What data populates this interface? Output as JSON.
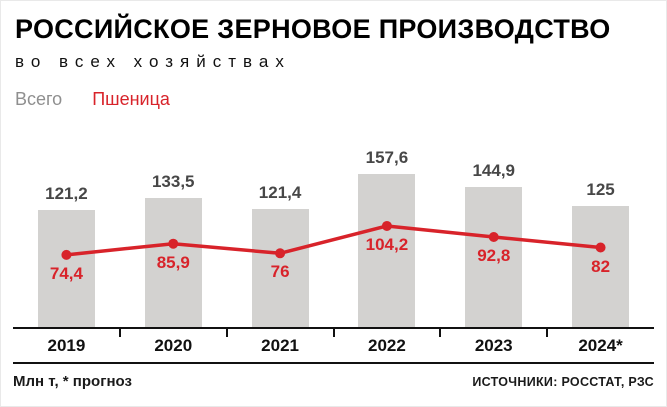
{
  "header": {
    "title": "РОССИЙСКОЕ ЗЕРНОВОЕ ПРОИЗВОДСТВО",
    "subtitle": "во всех хозяйствах"
  },
  "legend": {
    "total": "Всего",
    "wheat": "Пшеница"
  },
  "footer": {
    "note": "Млн т, * прогноз",
    "sources": "ИСТОЧНИКИ: РОССТАТ, РЗС"
  },
  "colors": {
    "bar": "#d3d2d0",
    "line": "#d8232a",
    "bar_label": "#474747",
    "text": "#111111"
  },
  "chart_data": {
    "type": "bar",
    "title": "РОССИЙСКОЕ ЗЕРНОВОЕ ПРОИЗВОДСТВО, во всех хозяйствах",
    "xlabel": "",
    "ylabel": "Млн т",
    "ylim": [
      0,
      165
    ],
    "grid": false,
    "legend_position": "top-left",
    "categories": [
      "2019",
      "2020",
      "2021",
      "2022",
      "2023",
      "2024*"
    ],
    "series": [
      {
        "name": "Всего",
        "kind": "bar",
        "values": [
          121.2,
          133.5,
          121.4,
          157.6,
          144.9,
          125
        ],
        "labels": [
          "121,2",
          "133,5",
          "121,4",
          "157,6",
          "144,9",
          "125"
        ]
      },
      {
        "name": "Пшеница",
        "kind": "line",
        "values": [
          74.4,
          85.9,
          76,
          104.2,
          92.8,
          82
        ],
        "labels": [
          "74,4",
          "85,9",
          "76",
          "104,2",
          "92,8",
          "82"
        ]
      }
    ]
  }
}
